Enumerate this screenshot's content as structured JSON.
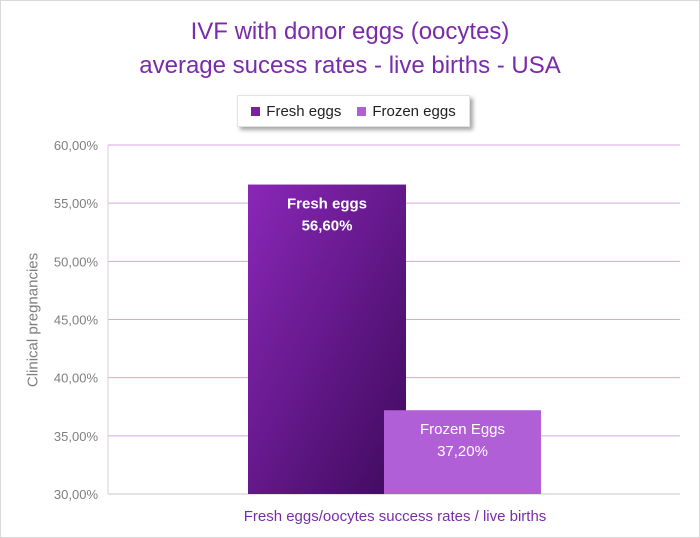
{
  "chart_data": {
    "type": "bar",
    "title_line1": "IVF with donor eggs (oocytes)",
    "title_line2": "average sucess rates - live births - USA",
    "ylabel": "Clinical pregnancies",
    "xlabel": "Fresh eggs/oocytes success rates / live births",
    "ylim": [
      30,
      60
    ],
    "yticks": [
      "30,00%",
      "35,00%",
      "40,00%",
      "45,00%",
      "50,00%",
      "55,00%",
      "60,00%"
    ],
    "ytick_values": [
      30,
      35,
      40,
      45,
      50,
      55,
      60
    ],
    "grid": true,
    "legend_position": "top",
    "series": [
      {
        "name": "Fresh eggs",
        "value": 56.6,
        "label_name": "Fresh eggs",
        "label_value": "56,60%",
        "color": "#7a1fa2",
        "label_color": "#ffffff"
      },
      {
        "name": "Frozen eggs",
        "value": 37.2,
        "label_name": "Frozen Eggs",
        "label_value": "37,20%",
        "color": "#b05fd6",
        "label_color": "#ffffff"
      }
    ],
    "colors": {
      "title": "#7a2bab",
      "grid": "#d6a6e0",
      "axis": "#d0d0d0"
    }
  }
}
